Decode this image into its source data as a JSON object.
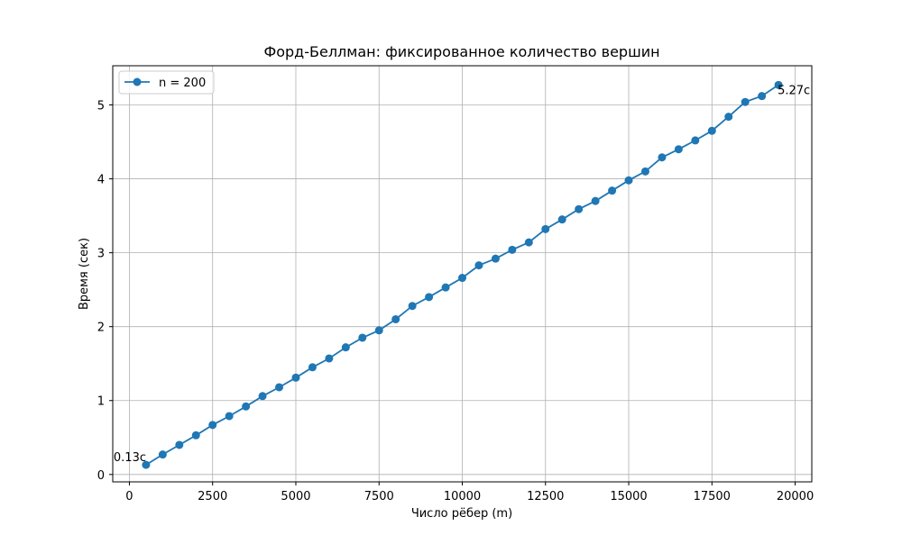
{
  "chart_data": {
    "type": "line",
    "title": "Форд-Беллман: фиксированное количество вершин",
    "xlabel": "Число рёбер (m)",
    "ylabel": "Время (сек)",
    "xlim": [
      -500,
      20500
    ],
    "ylim": [
      -0.1,
      5.53
    ],
    "xticks": [
      0,
      2500,
      5000,
      7500,
      10000,
      12500,
      15000,
      17500,
      20000
    ],
    "yticks": [
      0,
      1,
      2,
      3,
      4,
      5
    ],
    "grid": true,
    "legend_position": "top-left",
    "series": [
      {
        "name": "n = 200",
        "color": "#1f77b4",
        "marker": "circle",
        "x": [
          500,
          1000,
          1500,
          2000,
          2500,
          3000,
          3500,
          4000,
          4500,
          5000,
          5500,
          6000,
          6500,
          7000,
          7500,
          8000,
          8500,
          9000,
          9500,
          10000,
          10500,
          11000,
          11500,
          12000,
          12500,
          13000,
          13500,
          14000,
          14500,
          15000,
          15500,
          16000,
          16500,
          17000,
          17500,
          18000,
          18500,
          19000,
          19500
        ],
        "y": [
          0.13,
          0.27,
          0.4,
          0.53,
          0.67,
          0.79,
          0.92,
          1.06,
          1.18,
          1.31,
          1.45,
          1.57,
          1.72,
          1.85,
          1.95,
          2.1,
          2.28,
          2.4,
          2.53,
          2.66,
          2.83,
          2.92,
          3.04,
          3.14,
          3.32,
          3.45,
          3.59,
          3.7,
          3.84,
          3.98,
          4.1,
          4.29,
          4.4,
          4.52,
          4.65,
          4.84,
          5.04,
          5.12,
          5.27
        ]
      }
    ],
    "annotations": [
      {
        "text": "0.13с",
        "x": 500,
        "y": 0.13
      },
      {
        "text": "5.27с",
        "x": 19500,
        "y": 5.27
      }
    ]
  }
}
